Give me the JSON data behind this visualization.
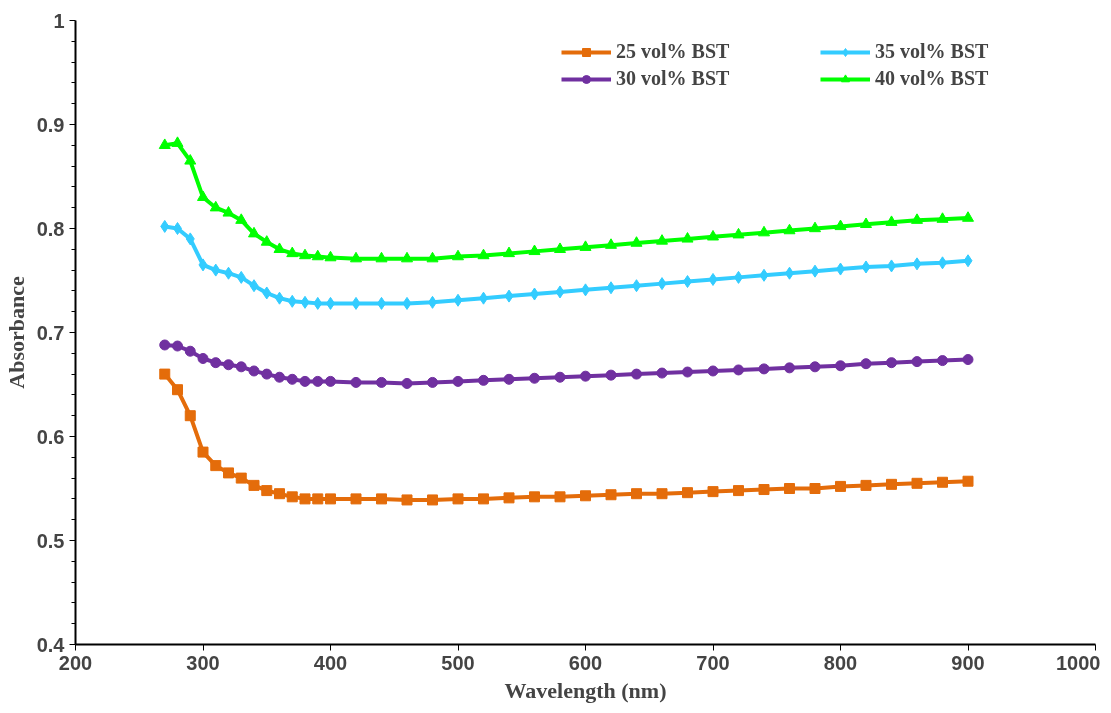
{
  "chart_data": {
    "type": "line",
    "xlabel": "Wavelength (nm)",
    "ylabel": "Absorbance",
    "x": [
      270,
      280,
      290,
      300,
      310,
      320,
      330,
      340,
      350,
      360,
      370,
      380,
      390,
      400,
      420,
      440,
      460,
      480,
      500,
      520,
      540,
      560,
      580,
      600,
      620,
      640,
      660,
      680,
      700,
      720,
      740,
      760,
      780,
      800,
      820,
      840,
      860,
      880,
      900
    ],
    "series": [
      {
        "name": "25 vol% BST",
        "color": "#e46c0a",
        "marker": "square",
        "values": [
          0.66,
          0.645,
          0.62,
          0.585,
          0.572,
          0.565,
          0.56,
          0.553,
          0.548,
          0.545,
          0.542,
          0.54,
          0.54,
          0.54,
          0.54,
          0.54,
          0.539,
          0.539,
          0.54,
          0.54,
          0.541,
          0.542,
          0.542,
          0.543,
          0.544,
          0.545,
          0.545,
          0.546,
          0.547,
          0.548,
          0.549,
          0.55,
          0.55,
          0.552,
          0.553,
          0.554,
          0.555,
          0.556,
          0.557
        ]
      },
      {
        "name": "30 vol% BST",
        "color": "#7030a0",
        "marker": "circle",
        "values": [
          0.688,
          0.687,
          0.682,
          0.675,
          0.671,
          0.669,
          0.667,
          0.663,
          0.66,
          0.657,
          0.655,
          0.653,
          0.653,
          0.653,
          0.652,
          0.652,
          0.651,
          0.652,
          0.653,
          0.654,
          0.655,
          0.656,
          0.657,
          0.658,
          0.659,
          0.66,
          0.661,
          0.662,
          0.663,
          0.664,
          0.665,
          0.666,
          0.667,
          0.668,
          0.67,
          0.671,
          0.672,
          0.673,
          0.674
        ]
      },
      {
        "name": "35 vol% BST",
        "color": "#33ccff",
        "marker": "diamond",
        "values": [
          0.802,
          0.8,
          0.79,
          0.765,
          0.76,
          0.757,
          0.753,
          0.745,
          0.738,
          0.733,
          0.73,
          0.729,
          0.728,
          0.728,
          0.728,
          0.728,
          0.728,
          0.729,
          0.731,
          0.733,
          0.735,
          0.737,
          0.739,
          0.741,
          0.743,
          0.745,
          0.747,
          0.749,
          0.751,
          0.753,
          0.755,
          0.757,
          0.759,
          0.761,
          0.763,
          0.764,
          0.766,
          0.767,
          0.769
        ]
      },
      {
        "name": "40 vol% BST",
        "color": "#00ff00",
        "marker": "triangle",
        "values": [
          0.88,
          0.882,
          0.865,
          0.83,
          0.82,
          0.815,
          0.808,
          0.795,
          0.787,
          0.78,
          0.776,
          0.774,
          0.773,
          0.772,
          0.771,
          0.771,
          0.771,
          0.771,
          0.773,
          0.774,
          0.776,
          0.778,
          0.78,
          0.782,
          0.784,
          0.786,
          0.788,
          0.79,
          0.792,
          0.794,
          0.796,
          0.798,
          0.8,
          0.802,
          0.804,
          0.806,
          0.808,
          0.809,
          0.81
        ]
      }
    ],
    "xlim": [
      200,
      1000
    ],
    "xticks": [
      200,
      300,
      400,
      500,
      600,
      700,
      800,
      900,
      1000
    ],
    "ylim": [
      0.4,
      1
    ],
    "yticks": [
      0.4,
      0.5,
      0.6,
      0.7,
      0.8,
      0.9,
      1
    ],
    "grid": false,
    "legend": "top",
    "line_style": "solid"
  }
}
